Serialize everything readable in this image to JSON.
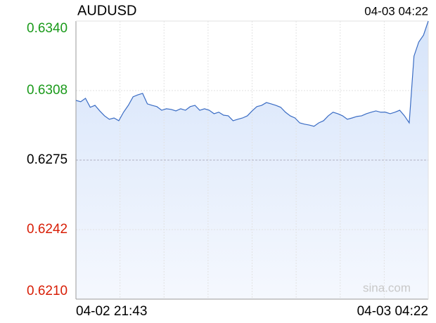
{
  "chart_data": {
    "type": "line",
    "title": "AUDUSD",
    "timestamp": "04-03 04:22",
    "watermark": "sina.com",
    "categories": [
      "04-02 21:43",
      null,
      null,
      null,
      null,
      null,
      null,
      null,
      null,
      null,
      null,
      null,
      null,
      null,
      null,
      null,
      null,
      null,
      null,
      null,
      null,
      null,
      null,
      null,
      null,
      null,
      null,
      null,
      null,
      null,
      null,
      null,
      null,
      null,
      null,
      null,
      null,
      null,
      null,
      null,
      null,
      null,
      null,
      null,
      null,
      null,
      null,
      null,
      null,
      null,
      null,
      null,
      null,
      null,
      null,
      null,
      null,
      null,
      null,
      null,
      null,
      null,
      null,
      null,
      null,
      null,
      null,
      null,
      null,
      null,
      null,
      null,
      null,
      null,
      "04-03 04:22"
    ],
    "series": [
      {
        "name": "AUDUSD",
        "color": "#3a6cc4",
        "values": [
          0.63029,
          0.63023,
          0.63039,
          0.62997,
          0.63006,
          0.6298,
          0.62957,
          0.62941,
          0.62947,
          0.62934,
          0.62974,
          0.63006,
          0.63046,
          0.63055,
          0.63062,
          0.63013,
          0.63006,
          0.63,
          0.62983,
          0.6299,
          0.62987,
          0.6298,
          0.6299,
          0.62983,
          0.63,
          0.63006,
          0.62983,
          0.6299,
          0.62983,
          0.62967,
          0.62974,
          0.6296,
          0.62957,
          0.62934,
          0.62941,
          0.62947,
          0.62957,
          0.6298,
          0.63,
          0.63006,
          0.63019,
          0.63013,
          0.63006,
          0.62997,
          0.62974,
          0.62957,
          0.62947,
          0.62924,
          0.62918,
          0.62914,
          0.62908,
          0.62924,
          0.62934,
          0.62957,
          0.62974,
          0.62967,
          0.62957,
          0.62941,
          0.62947,
          0.62954,
          0.62957,
          0.62967,
          0.62974,
          0.6298,
          0.62974,
          0.62974,
          0.62967,
          0.62974,
          0.62983,
          0.62957,
          0.62924,
          0.63236,
          0.63302,
          0.63334,
          0.634
        ]
      }
    ],
    "ylim": [
      0.621,
      0.634
    ],
    "yticks": [
      {
        "value": 0.634,
        "label": "0.6340",
        "color": "#1a9a1a"
      },
      {
        "value": 0.63075,
        "label": "0.6308",
        "color": "#1a9a1a"
      },
      {
        "value": 0.6275,
        "label": "0.6275",
        "color": "#000000"
      },
      {
        "value": 0.62425,
        "label": "0.6242",
        "color": "#d81e06"
      },
      {
        "value": 0.621,
        "label": "0.6210",
        "color": "#d81e06"
      }
    ],
    "grid": true
  }
}
